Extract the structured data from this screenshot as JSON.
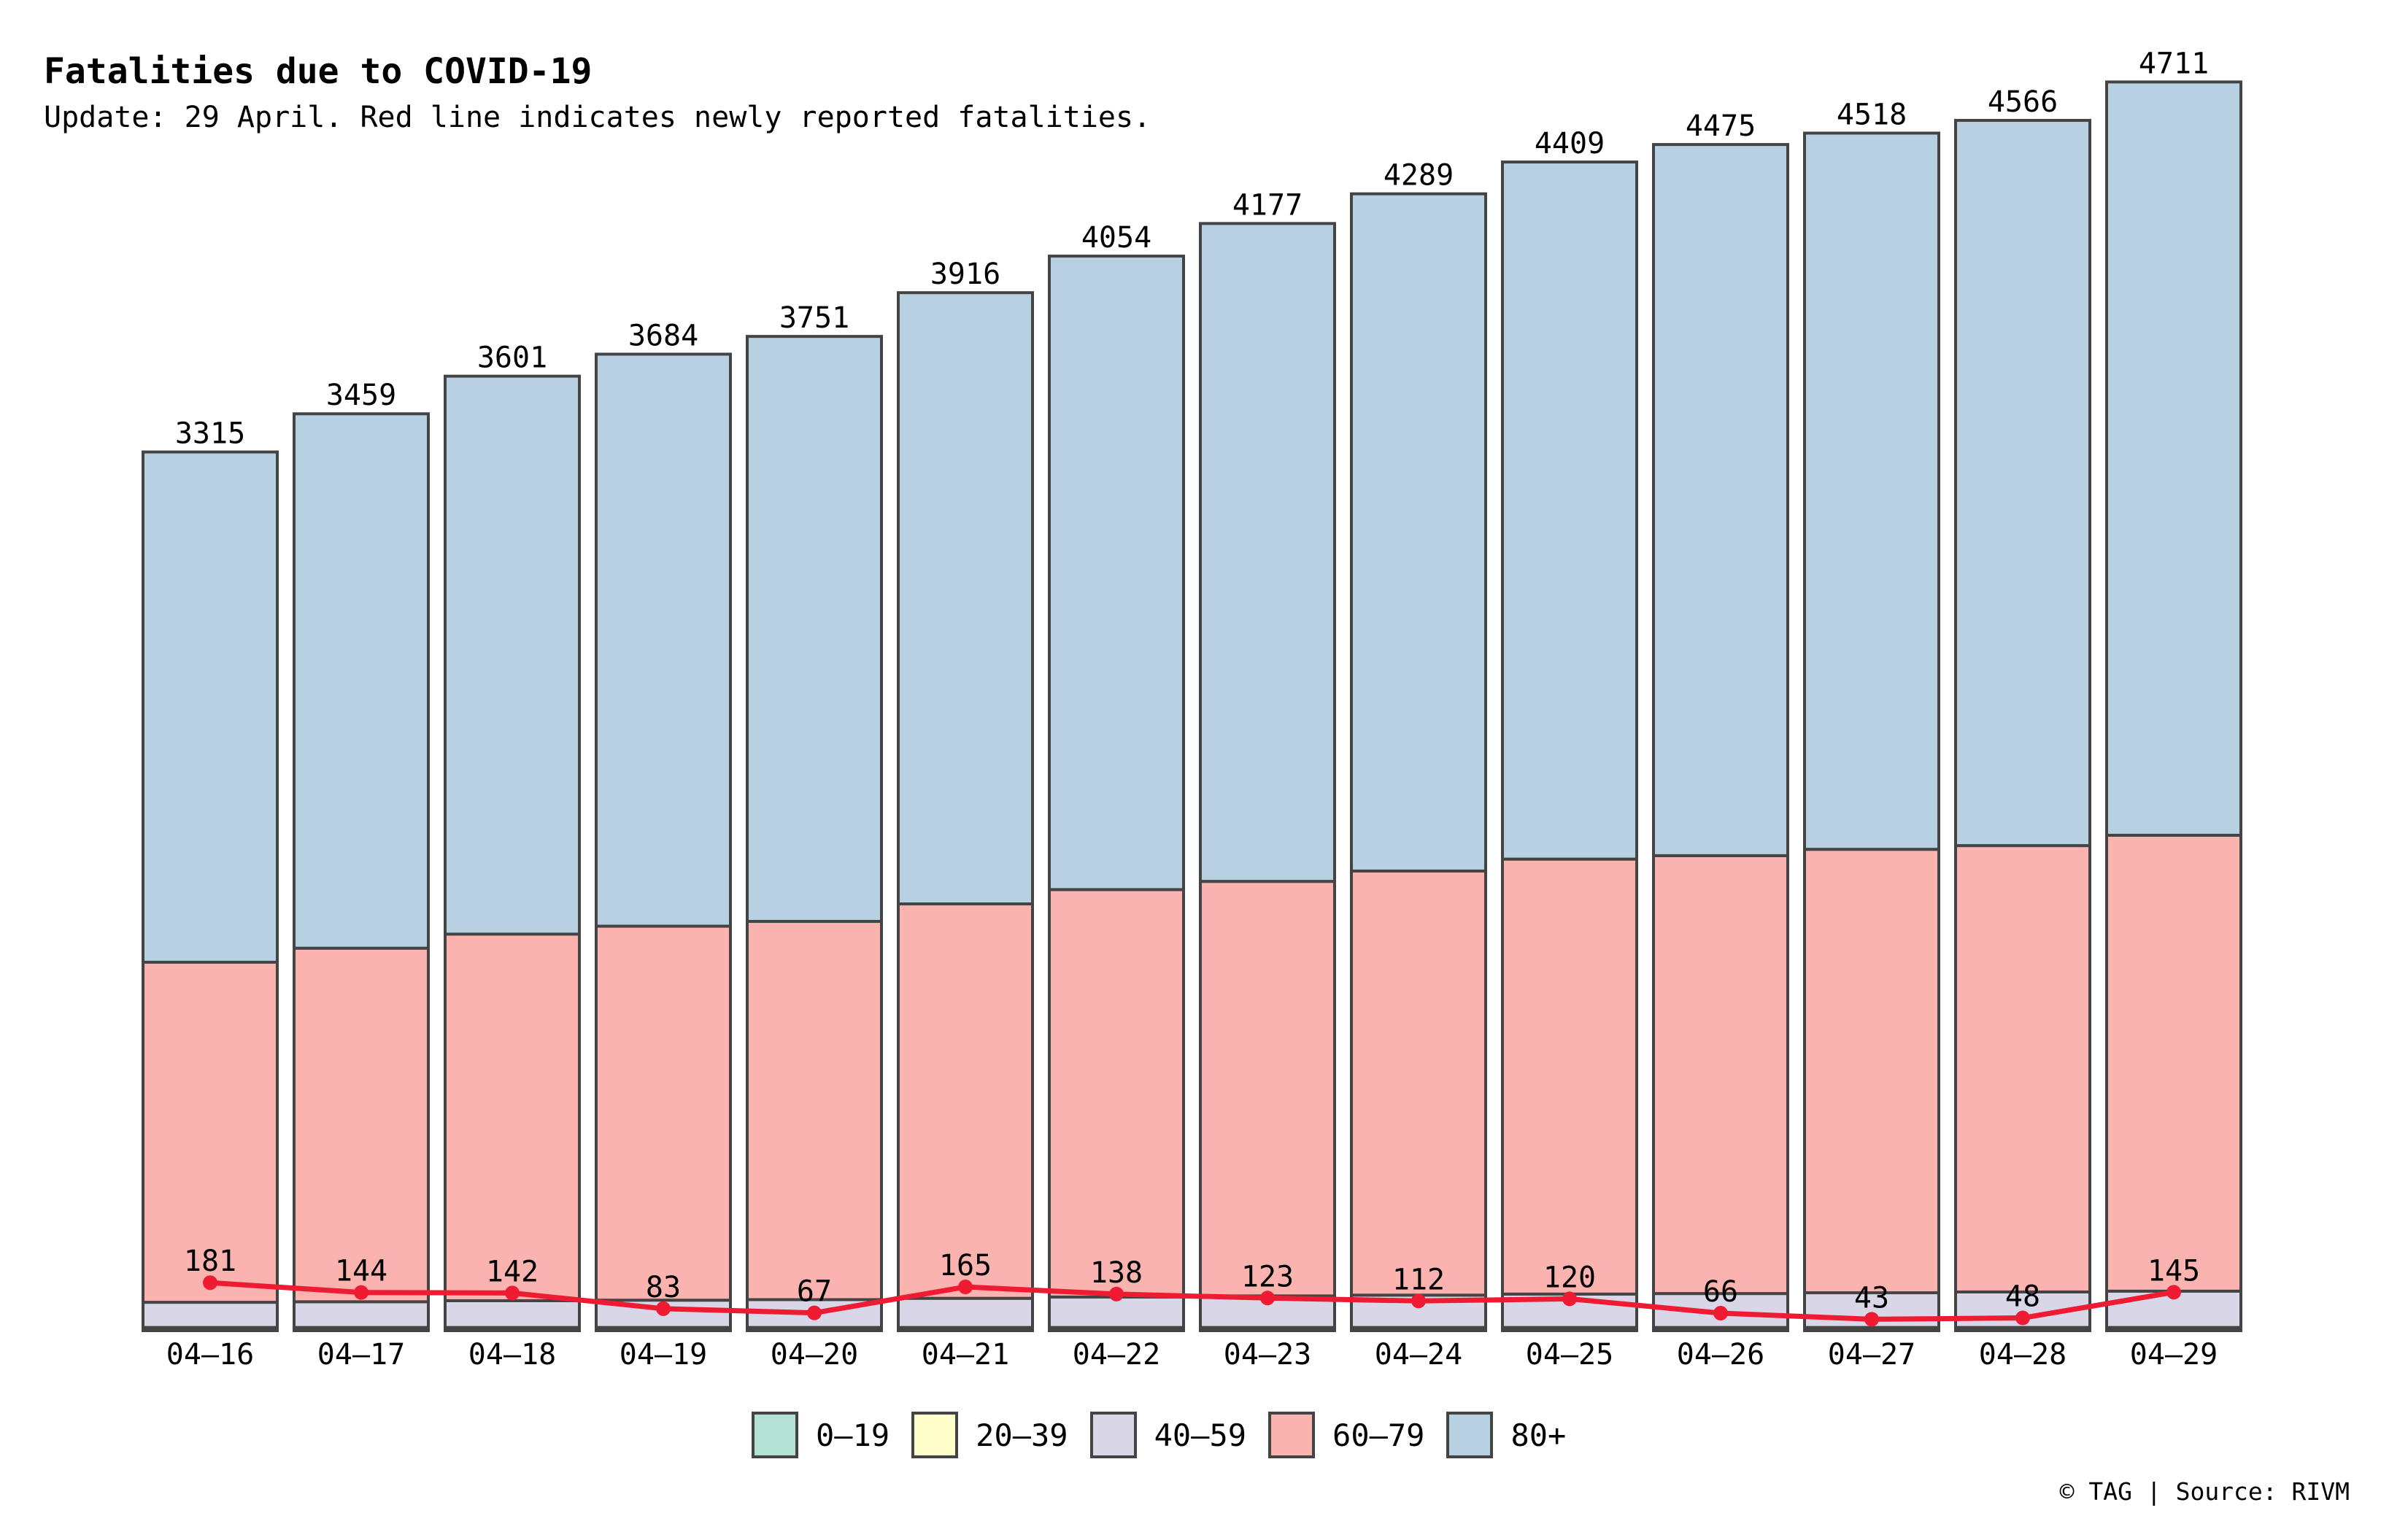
{
  "title": "Fatalities due to COVID-19",
  "subtitle": "Update: 29 April. Red line indicates newly reported fatalities.",
  "credit": "© TAG | Source: RIVM",
  "colors": {
    "age_0_19": "#b3e2d5",
    "age_20_39": "#ffffcc",
    "age_40_59": "#d9d6e8",
    "age_60_79": "#fab3af",
    "age_80_plus": "#b7d0e2",
    "new_line": "#ee1b33",
    "bar_edge": "#444444"
  },
  "legend": [
    {
      "label": "0–19",
      "color_key": "age_0_19"
    },
    {
      "label": "20–39",
      "color_key": "age_20_39"
    },
    {
      "label": "40–59",
      "color_key": "age_40_59"
    },
    {
      "label": "60–79",
      "color_key": "age_60_79"
    },
    {
      "label": "80+",
      "color_key": "age_80_plus"
    }
  ],
  "chart_data": {
    "type": "bar",
    "stacked": true,
    "categories": [
      "04–16",
      "04–17",
      "04–18",
      "04–19",
      "04–20",
      "04–21",
      "04–22",
      "04–23",
      "04–24",
      "04–25",
      "04–26",
      "04–27",
      "04–28",
      "04–29"
    ],
    "totals": [
      3315,
      3459,
      3601,
      3684,
      3751,
      3916,
      4054,
      4177,
      4289,
      4409,
      4475,
      4518,
      4566,
      4711
    ],
    "series": [
      {
        "name": "0–19",
        "color_key": "age_0_19",
        "values": [
          3,
          3,
          3,
          3,
          3,
          3,
          3,
          3,
          3,
          3,
          3,
          3,
          3,
          3
        ]
      },
      {
        "name": "20–39",
        "color_key": "age_20_39",
        "values": [
          9,
          9,
          9,
          9,
          9,
          9,
          9,
          9,
          9,
          9,
          9,
          9,
          9,
          9
        ]
      },
      {
        "name": "40–59",
        "color_key": "age_40_59",
        "values": [
          95,
          97,
          101,
          103,
          105,
          110,
          115,
          119,
          122,
          126,
          128,
          131,
          134,
          137
        ]
      },
      {
        "name": "60–79",
        "color_key": "age_60_79",
        "values": [
          1283,
          1334,
          1383,
          1411,
          1427,
          1488,
          1537,
          1564,
          1600,
          1641,
          1652,
          1673,
          1684,
          1720
        ]
      },
      {
        "name": "80+",
        "color_key": "age_80_plus",
        "values": [
          1925,
          2016,
          2105,
          2158,
          2207,
          2306,
          2390,
          2482,
          2555,
          2630,
          2683,
          2702,
          2736,
          2842
        ]
      }
    ],
    "line": {
      "color_key": "new_line",
      "values": [
        181,
        144,
        142,
        83,
        67,
        165,
        138,
        123,
        112,
        120,
        66,
        43,
        48,
        145
      ]
    },
    "ylim": [
      0,
      4800
    ],
    "xlabel": "",
    "ylabel": "",
    "grid": false,
    "legend_position": "bottom-center"
  }
}
